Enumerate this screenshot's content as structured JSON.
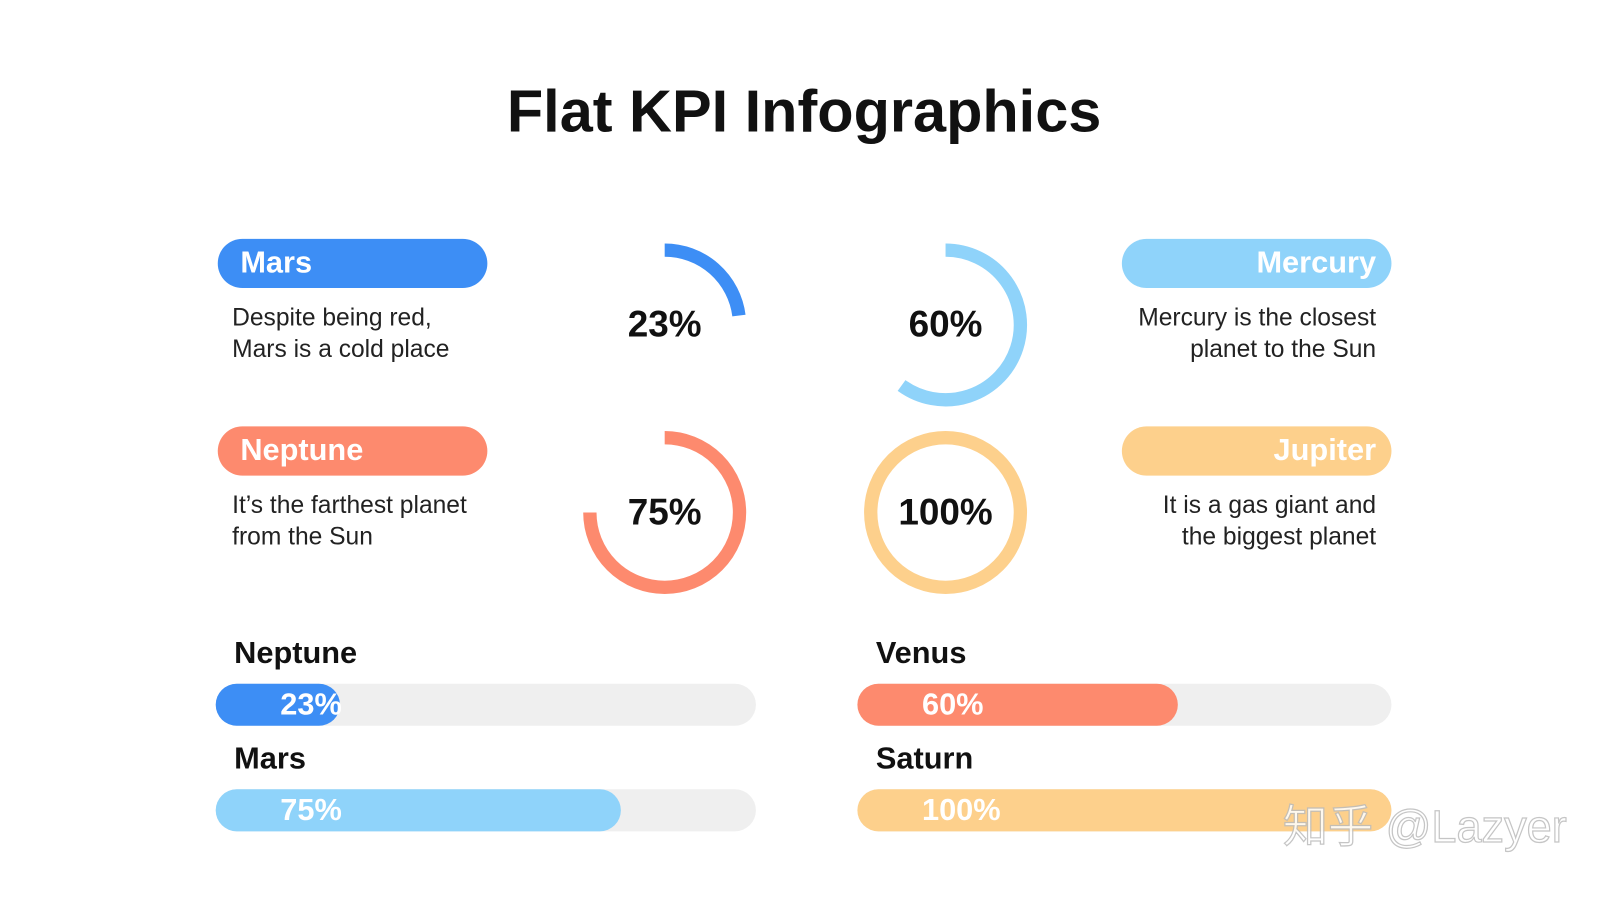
{
  "title": "Flat KPI Infographics",
  "cards": [
    {
      "name": "Mars",
      "description": [
        "Despite being red,",
        "Mars is a cold place"
      ],
      "color": "#3d8ef5",
      "percent": {
        "value": 23,
        "label": "23%"
      }
    },
    {
      "name": "Mercury",
      "description": [
        "Mercury is the closest",
        "planet to the Sun"
      ],
      "color": "#8fd3fa",
      "percent": {
        "value": 60,
        "label": "60%"
      }
    },
    {
      "name": "Neptune",
      "description": [
        "It’s the farthest planet",
        "from the Sun"
      ],
      "color": "#fd8a6e",
      "percent": {
        "value": 75,
        "label": "75%"
      }
    },
    {
      "name": "Jupiter",
      "description": [
        "It is a gas giant and",
        "the biggest planet"
      ],
      "color": "#fdd08c",
      "percent": {
        "value": 100,
        "label": "100%"
      }
    }
  ],
  "bars": [
    {
      "name": "Neptune",
      "color": "#3d8ef5",
      "percent": {
        "value": 23,
        "label": "23%"
      }
    },
    {
      "name": "Mars",
      "color": "#8fd3fa",
      "percent": {
        "value": 75,
        "label": "75%"
      }
    },
    {
      "name": "Venus",
      "color": "#fd8a6e",
      "percent": {
        "value": 60,
        "label": "60%"
      }
    },
    {
      "name": "Saturn",
      "color": "#fdd08c",
      "percent": {
        "value": 100,
        "label": "100%"
      }
    }
  ],
  "watermark": "知乎 @Lazyer"
}
